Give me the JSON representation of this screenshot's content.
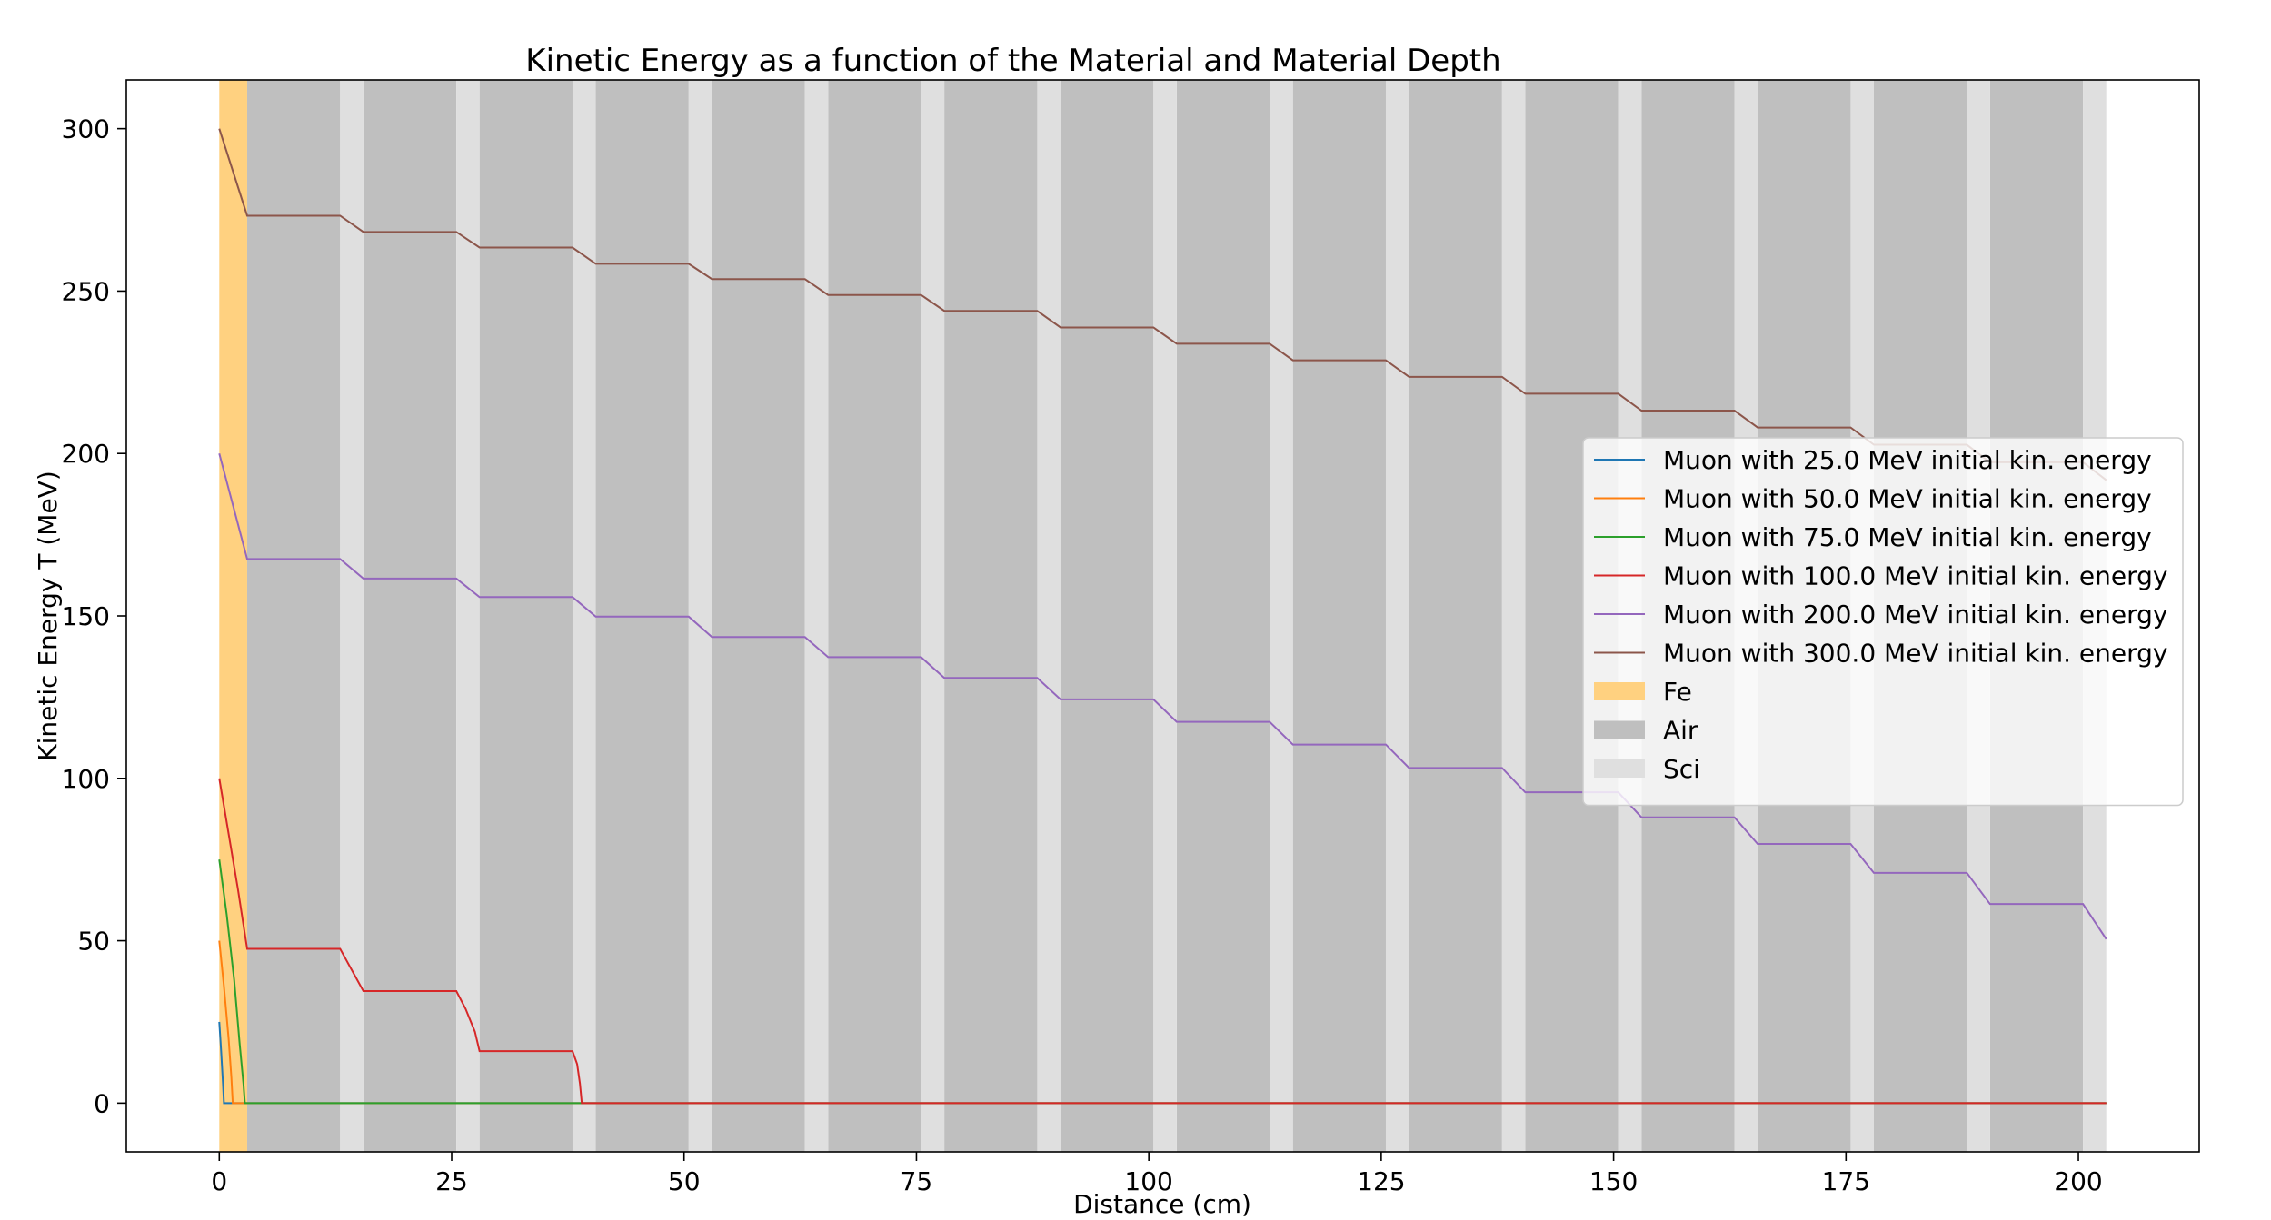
{
  "chart_data": {
    "type": "line",
    "title": "Kinetic Energy as a function of the Material and Material Depth",
    "xlabel": "Distance (cm)",
    "ylabel": "Kinetic Energy T (MeV)",
    "xlim": [
      -10,
      213
    ],
    "ylim": [
      -15,
      315
    ],
    "xticks": [
      0,
      25,
      50,
      75,
      100,
      125,
      150,
      175,
      200
    ],
    "yticks": [
      0,
      50,
      100,
      150,
      200,
      250,
      300
    ],
    "grid": false,
    "legend_position": "center-right",
    "materials": [
      {
        "name": "Fe",
        "color": "#ffd180",
        "regions": [
          [
            0,
            3
          ]
        ]
      },
      {
        "name": "Air",
        "color": "#bfbfbf",
        "regions": [
          [
            3,
            13
          ],
          [
            15.5,
            25.5
          ],
          [
            28,
            38
          ],
          [
            40.5,
            50.5
          ],
          [
            53,
            63
          ],
          [
            65.5,
            75.5
          ],
          [
            78,
            88
          ],
          [
            90.5,
            100.5
          ],
          [
            103,
            113
          ],
          [
            115.5,
            125.5
          ],
          [
            128,
            138
          ],
          [
            140.5,
            150.5
          ],
          [
            153,
            163
          ],
          [
            165.5,
            175.5
          ],
          [
            178,
            188
          ],
          [
            190.5,
            200.5
          ]
        ]
      },
      {
        "name": "Sci",
        "color": "#dfdfdf",
        "regions": [
          [
            13,
            15.5
          ],
          [
            25.5,
            28
          ],
          [
            38,
            40.5
          ],
          [
            50.5,
            53
          ],
          [
            63,
            65.5
          ],
          [
            75.5,
            78
          ],
          [
            88,
            90.5
          ],
          [
            100.5,
            103
          ],
          [
            113,
            115.5
          ],
          [
            125.5,
            128
          ],
          [
            138,
            140.5
          ],
          [
            150.5,
            153
          ],
          [
            163,
            165.5
          ],
          [
            175.5,
            178
          ],
          [
            188,
            190.5
          ],
          [
            200.5,
            203
          ]
        ]
      }
    ],
    "series": [
      {
        "name": "Muon with 25.0 MeV initial kin. energy",
        "color": "#1f77b4",
        "points": [
          [
            0,
            25
          ],
          [
            0.2,
            16
          ],
          [
            0.4,
            6
          ],
          [
            0.5,
            0
          ],
          [
            203,
            0
          ]
        ]
      },
      {
        "name": "Muon with 50.0 MeV initial kin. energy",
        "color": "#ff7f0e",
        "points": [
          [
            0,
            50
          ],
          [
            0.5,
            36
          ],
          [
            1.0,
            20
          ],
          [
            1.3,
            8
          ],
          [
            1.45,
            0
          ],
          [
            203,
            0
          ]
        ]
      },
      {
        "name": "Muon with 75.0 MeV initial kin. energy",
        "color": "#2ca02c",
        "points": [
          [
            0,
            75
          ],
          [
            0.8,
            58
          ],
          [
            1.6,
            38
          ],
          [
            2.2,
            18
          ],
          [
            2.6,
            6
          ],
          [
            2.75,
            0
          ],
          [
            203,
            0
          ]
        ]
      },
      {
        "name": "Muon with 100.0 MeV initial kin. energy",
        "color": "#d62728",
        "points": [
          [
            0,
            100
          ],
          [
            1,
            83
          ],
          [
            2,
            66
          ],
          [
            3,
            47.5
          ],
          [
            13,
            47.5
          ],
          [
            15.5,
            34.5
          ],
          [
            25.5,
            34.5
          ],
          [
            26.5,
            29
          ],
          [
            27.5,
            22
          ],
          [
            28,
            16
          ],
          [
            38,
            16
          ],
          [
            38.5,
            12
          ],
          [
            38.8,
            6
          ],
          [
            39,
            0
          ],
          [
            203,
            0
          ]
        ]
      },
      {
        "name": "Muon with 200.0 MeV initial kin. energy",
        "color": "#9467bd",
        "points": [
          [
            0,
            200
          ],
          [
            3,
            167.5
          ],
          [
            13,
            167.5
          ],
          [
            15.5,
            161.5
          ],
          [
            25.5,
            161.5
          ],
          [
            28,
            155.8
          ],
          [
            38,
            155.8
          ],
          [
            40.5,
            149.8
          ],
          [
            50.5,
            149.8
          ],
          [
            53,
            143.5
          ],
          [
            63,
            143.5
          ],
          [
            65.5,
            137.3
          ],
          [
            75.5,
            137.3
          ],
          [
            78,
            130.9
          ],
          [
            88,
            130.9
          ],
          [
            90.5,
            124.3
          ],
          [
            100.5,
            124.3
          ],
          [
            103,
            117.4
          ],
          [
            113,
            117.4
          ],
          [
            115.5,
            110.4
          ],
          [
            125.5,
            110.4
          ],
          [
            128,
            103.2
          ],
          [
            138,
            103.2
          ],
          [
            140.5,
            95.7
          ],
          [
            150.5,
            95.7
          ],
          [
            153,
            88
          ],
          [
            163,
            88
          ],
          [
            165.5,
            79.8
          ],
          [
            175.5,
            79.8
          ],
          [
            178,
            70.9
          ],
          [
            188,
            70.9
          ],
          [
            190.5,
            61.3
          ],
          [
            200.5,
            61.3
          ],
          [
            203,
            50.5
          ]
        ]
      },
      {
        "name": "Muon with 300.0 MeV initial kin. energy",
        "color": "#8c564b",
        "points": [
          [
            0,
            300
          ],
          [
            3,
            273.2
          ],
          [
            13,
            273.2
          ],
          [
            15.5,
            268.2
          ],
          [
            25.5,
            268.2
          ],
          [
            28,
            263.4
          ],
          [
            38,
            263.4
          ],
          [
            40.5,
            258.4
          ],
          [
            50.5,
            258.4
          ],
          [
            53,
            253.7
          ],
          [
            63,
            253.7
          ],
          [
            65.5,
            248.8
          ],
          [
            75.5,
            248.8
          ],
          [
            78,
            243.9
          ],
          [
            88,
            243.9
          ],
          [
            90.5,
            238.8
          ],
          [
            100.5,
            238.8
          ],
          [
            103,
            233.8
          ],
          [
            113,
            233.8
          ],
          [
            115.5,
            228.7
          ],
          [
            125.5,
            228.7
          ],
          [
            128,
            223.6
          ],
          [
            138,
            223.6
          ],
          [
            140.5,
            218.4
          ],
          [
            150.5,
            218.4
          ],
          [
            153,
            213.2
          ],
          [
            163,
            213.2
          ],
          [
            165.5,
            208
          ],
          [
            175.5,
            208
          ],
          [
            178,
            202.7
          ],
          [
            188,
            202.7
          ],
          [
            190.5,
            197.3
          ],
          [
            200.5,
            197.3
          ],
          [
            203,
            191.8
          ]
        ]
      }
    ]
  }
}
